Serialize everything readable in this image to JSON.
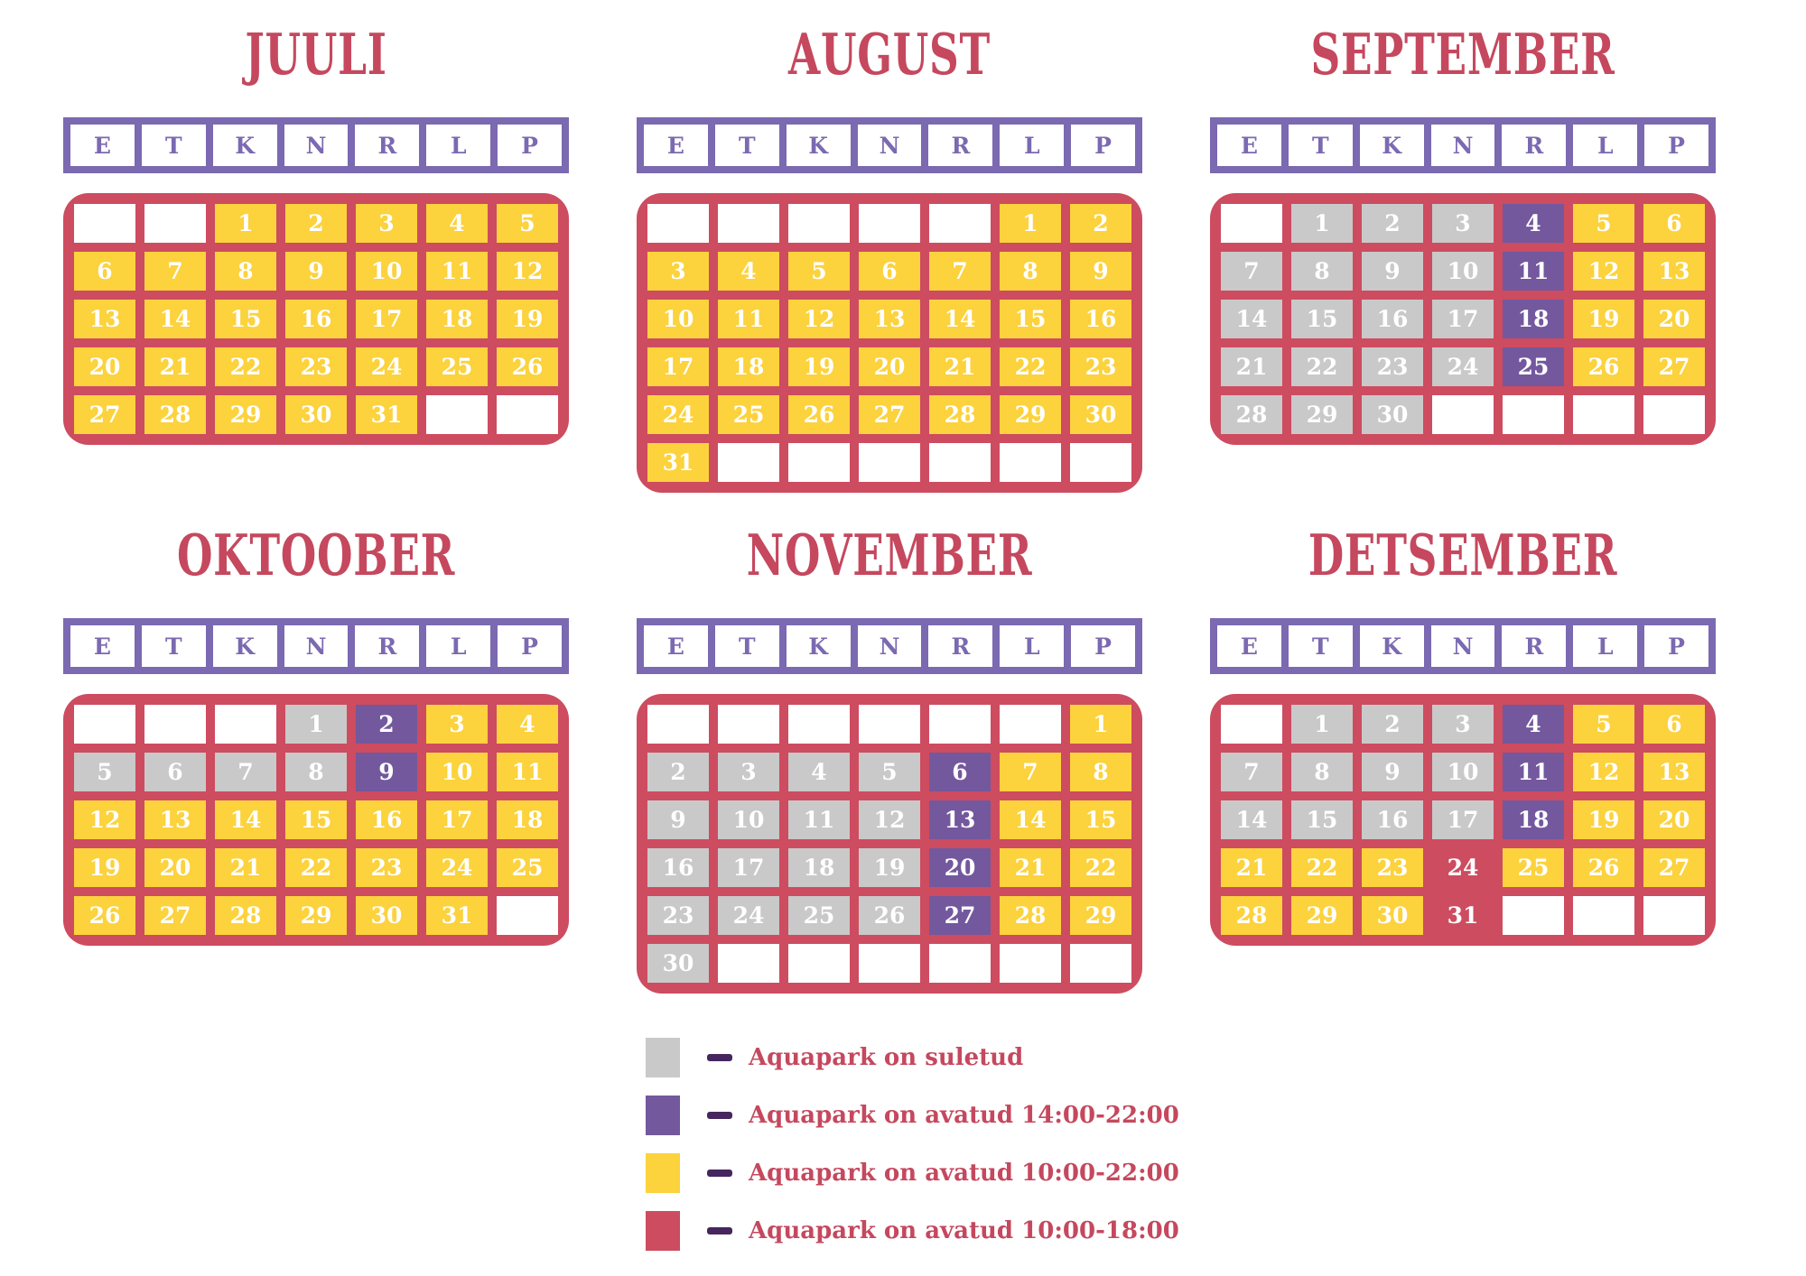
{
  "weekdays": [
    "E",
    "T",
    "K",
    "N",
    "R",
    "L",
    "P"
  ],
  "state_key": {
    "G": "closed",
    "P": "open_14_00_22_00",
    "Y": "open_10_00_22_00",
    "R": "open_10_00_18_00",
    "": "blank"
  },
  "colors": {
    "background": "#ffffff",
    "red": "#cd4c60",
    "yellow": "#fcd23d",
    "gray": "#c9c9c9",
    "purple": "#73589e",
    "weekday_purple": "#7b69b1",
    "dash_purple": "#45265e",
    "title_red": "#c5485e",
    "day_text": "#ffffff"
  },
  "months": [
    {
      "name": "JUULI",
      "cells": [
        {
          "day": "",
          "state": ""
        },
        {
          "day": "",
          "state": ""
        },
        {
          "day": "1",
          "state": "Y"
        },
        {
          "day": "2",
          "state": "Y"
        },
        {
          "day": "3",
          "state": "Y"
        },
        {
          "day": "4",
          "state": "Y"
        },
        {
          "day": "5",
          "state": "Y"
        },
        {
          "day": "6",
          "state": "Y"
        },
        {
          "day": "7",
          "state": "Y"
        },
        {
          "day": "8",
          "state": "Y"
        },
        {
          "day": "9",
          "state": "Y"
        },
        {
          "day": "10",
          "state": "Y"
        },
        {
          "day": "11",
          "state": "Y"
        },
        {
          "day": "12",
          "state": "Y"
        },
        {
          "day": "13",
          "state": "Y"
        },
        {
          "day": "14",
          "state": "Y"
        },
        {
          "day": "15",
          "state": "Y"
        },
        {
          "day": "16",
          "state": "Y"
        },
        {
          "day": "17",
          "state": "Y"
        },
        {
          "day": "18",
          "state": "Y"
        },
        {
          "day": "19",
          "state": "Y"
        },
        {
          "day": "20",
          "state": "Y"
        },
        {
          "day": "21",
          "state": "Y"
        },
        {
          "day": "22",
          "state": "Y"
        },
        {
          "day": "23",
          "state": "Y"
        },
        {
          "day": "24",
          "state": "Y"
        },
        {
          "day": "25",
          "state": "Y"
        },
        {
          "day": "26",
          "state": "Y"
        },
        {
          "day": "27",
          "state": "Y"
        },
        {
          "day": "28",
          "state": "Y"
        },
        {
          "day": "29",
          "state": "Y"
        },
        {
          "day": "30",
          "state": "Y"
        },
        {
          "day": "31",
          "state": "Y"
        },
        {
          "day": "",
          "state": ""
        },
        {
          "day": "",
          "state": ""
        }
      ]
    },
    {
      "name": "AUGUST",
      "cells": [
        {
          "day": "",
          "state": ""
        },
        {
          "day": "",
          "state": ""
        },
        {
          "day": "",
          "state": ""
        },
        {
          "day": "",
          "state": ""
        },
        {
          "day": "",
          "state": ""
        },
        {
          "day": "1",
          "state": "Y"
        },
        {
          "day": "2",
          "state": "Y"
        },
        {
          "day": "3",
          "state": "Y"
        },
        {
          "day": "4",
          "state": "Y"
        },
        {
          "day": "5",
          "state": "Y"
        },
        {
          "day": "6",
          "state": "Y"
        },
        {
          "day": "7",
          "state": "Y"
        },
        {
          "day": "8",
          "state": "Y"
        },
        {
          "day": "9",
          "state": "Y"
        },
        {
          "day": "10",
          "state": "Y"
        },
        {
          "day": "11",
          "state": "Y"
        },
        {
          "day": "12",
          "state": "Y"
        },
        {
          "day": "13",
          "state": "Y"
        },
        {
          "day": "14",
          "state": "Y"
        },
        {
          "day": "15",
          "state": "Y"
        },
        {
          "day": "16",
          "state": "Y"
        },
        {
          "day": "17",
          "state": "Y"
        },
        {
          "day": "18",
          "state": "Y"
        },
        {
          "day": "19",
          "state": "Y"
        },
        {
          "day": "20",
          "state": "Y"
        },
        {
          "day": "21",
          "state": "Y"
        },
        {
          "day": "22",
          "state": "Y"
        },
        {
          "day": "23",
          "state": "Y"
        },
        {
          "day": "24",
          "state": "Y"
        },
        {
          "day": "25",
          "state": "Y"
        },
        {
          "day": "26",
          "state": "Y"
        },
        {
          "day": "27",
          "state": "Y"
        },
        {
          "day": "28",
          "state": "Y"
        },
        {
          "day": "29",
          "state": "Y"
        },
        {
          "day": "30",
          "state": "Y"
        },
        {
          "day": "31",
          "state": "Y"
        },
        {
          "day": "",
          "state": ""
        },
        {
          "day": "",
          "state": ""
        },
        {
          "day": "",
          "state": ""
        },
        {
          "day": "",
          "state": ""
        },
        {
          "day": "",
          "state": ""
        },
        {
          "day": "",
          "state": ""
        }
      ]
    },
    {
      "name": "SEPTEMBER",
      "cells": [
        {
          "day": "",
          "state": ""
        },
        {
          "day": "1",
          "state": "G"
        },
        {
          "day": "2",
          "state": "G"
        },
        {
          "day": "3",
          "state": "G"
        },
        {
          "day": "4",
          "state": "P"
        },
        {
          "day": "5",
          "state": "Y"
        },
        {
          "day": "6",
          "state": "Y"
        },
        {
          "day": "7",
          "state": "G"
        },
        {
          "day": "8",
          "state": "G"
        },
        {
          "day": "9",
          "state": "G"
        },
        {
          "day": "10",
          "state": "G"
        },
        {
          "day": "11",
          "state": "P"
        },
        {
          "day": "12",
          "state": "Y"
        },
        {
          "day": "13",
          "state": "Y"
        },
        {
          "day": "14",
          "state": "G"
        },
        {
          "day": "15",
          "state": "G"
        },
        {
          "day": "16",
          "state": "G"
        },
        {
          "day": "17",
          "state": "G"
        },
        {
          "day": "18",
          "state": "P"
        },
        {
          "day": "19",
          "state": "Y"
        },
        {
          "day": "20",
          "state": "Y"
        },
        {
          "day": "21",
          "state": "G"
        },
        {
          "day": "22",
          "state": "G"
        },
        {
          "day": "23",
          "state": "G"
        },
        {
          "day": "24",
          "state": "G"
        },
        {
          "day": "25",
          "state": "P"
        },
        {
          "day": "26",
          "state": "Y"
        },
        {
          "day": "27",
          "state": "Y"
        },
        {
          "day": "28",
          "state": "G"
        },
        {
          "day": "29",
          "state": "G"
        },
        {
          "day": "30",
          "state": "G"
        },
        {
          "day": "",
          "state": ""
        },
        {
          "day": "",
          "state": ""
        },
        {
          "day": "",
          "state": ""
        },
        {
          "day": "",
          "state": ""
        }
      ]
    },
    {
      "name": "OKTOOBER",
      "cells": [
        {
          "day": "",
          "state": ""
        },
        {
          "day": "",
          "state": ""
        },
        {
          "day": "",
          "state": ""
        },
        {
          "day": "1",
          "state": "G"
        },
        {
          "day": "2",
          "state": "P"
        },
        {
          "day": "3",
          "state": "Y"
        },
        {
          "day": "4",
          "state": "Y"
        },
        {
          "day": "5",
          "state": "G"
        },
        {
          "day": "6",
          "state": "G"
        },
        {
          "day": "7",
          "state": "G"
        },
        {
          "day": "8",
          "state": "G"
        },
        {
          "day": "9",
          "state": "P"
        },
        {
          "day": "10",
          "state": "Y"
        },
        {
          "day": "11",
          "state": "Y"
        },
        {
          "day": "12",
          "state": "Y"
        },
        {
          "day": "13",
          "state": "Y"
        },
        {
          "day": "14",
          "state": "Y"
        },
        {
          "day": "15",
          "state": "Y"
        },
        {
          "day": "16",
          "state": "Y"
        },
        {
          "day": "17",
          "state": "Y"
        },
        {
          "day": "18",
          "state": "Y"
        },
        {
          "day": "19",
          "state": "Y"
        },
        {
          "day": "20",
          "state": "Y"
        },
        {
          "day": "21",
          "state": "Y"
        },
        {
          "day": "22",
          "state": "Y"
        },
        {
          "day": "23",
          "state": "Y"
        },
        {
          "day": "24",
          "state": "Y"
        },
        {
          "day": "25",
          "state": "Y"
        },
        {
          "day": "26",
          "state": "Y"
        },
        {
          "day": "27",
          "state": "Y"
        },
        {
          "day": "28",
          "state": "Y"
        },
        {
          "day": "29",
          "state": "Y"
        },
        {
          "day": "30",
          "state": "Y"
        },
        {
          "day": "31",
          "state": "Y"
        },
        {
          "day": "",
          "state": ""
        }
      ]
    },
    {
      "name": "NOVEMBER",
      "cells": [
        {
          "day": "",
          "state": ""
        },
        {
          "day": "",
          "state": ""
        },
        {
          "day": "",
          "state": ""
        },
        {
          "day": "",
          "state": ""
        },
        {
          "day": "",
          "state": ""
        },
        {
          "day": "",
          "state": ""
        },
        {
          "day": "1",
          "state": "Y"
        },
        {
          "day": "2",
          "state": "G"
        },
        {
          "day": "3",
          "state": "G"
        },
        {
          "day": "4",
          "state": "G"
        },
        {
          "day": "5",
          "state": "G"
        },
        {
          "day": "6",
          "state": "P"
        },
        {
          "day": "7",
          "state": "Y"
        },
        {
          "day": "8",
          "state": "Y"
        },
        {
          "day": "9",
          "state": "G"
        },
        {
          "day": "10",
          "state": "G"
        },
        {
          "day": "11",
          "state": "G"
        },
        {
          "day": "12",
          "state": "G"
        },
        {
          "day": "13",
          "state": "P"
        },
        {
          "day": "14",
          "state": "Y"
        },
        {
          "day": "15",
          "state": "Y"
        },
        {
          "day": "16",
          "state": "G"
        },
        {
          "day": "17",
          "state": "G"
        },
        {
          "day": "18",
          "state": "G"
        },
        {
          "day": "19",
          "state": "G"
        },
        {
          "day": "20",
          "state": "P"
        },
        {
          "day": "21",
          "state": "Y"
        },
        {
          "day": "22",
          "state": "Y"
        },
        {
          "day": "23",
          "state": "G"
        },
        {
          "day": "24",
          "state": "G"
        },
        {
          "day": "25",
          "state": "G"
        },
        {
          "day": "26",
          "state": "G"
        },
        {
          "day": "27",
          "state": "P"
        },
        {
          "day": "28",
          "state": "Y"
        },
        {
          "day": "29",
          "state": "Y"
        },
        {
          "day": "30",
          "state": "G"
        },
        {
          "day": "",
          "state": ""
        },
        {
          "day": "",
          "state": ""
        },
        {
          "day": "",
          "state": ""
        },
        {
          "day": "",
          "state": ""
        },
        {
          "day": "",
          "state": ""
        },
        {
          "day": "",
          "state": ""
        }
      ]
    },
    {
      "name": "DETSEMBER",
      "cells": [
        {
          "day": "",
          "state": ""
        },
        {
          "day": "1",
          "state": "G"
        },
        {
          "day": "2",
          "state": "G"
        },
        {
          "day": "3",
          "state": "G"
        },
        {
          "day": "4",
          "state": "P"
        },
        {
          "day": "5",
          "state": "Y"
        },
        {
          "day": "6",
          "state": "Y"
        },
        {
          "day": "7",
          "state": "G"
        },
        {
          "day": "8",
          "state": "G"
        },
        {
          "day": "9",
          "state": "G"
        },
        {
          "day": "10",
          "state": "G"
        },
        {
          "day": "11",
          "state": "P"
        },
        {
          "day": "12",
          "state": "Y"
        },
        {
          "day": "13",
          "state": "Y"
        },
        {
          "day": "14",
          "state": "G"
        },
        {
          "day": "15",
          "state": "G"
        },
        {
          "day": "16",
          "state": "G"
        },
        {
          "day": "17",
          "state": "G"
        },
        {
          "day": "18",
          "state": "P"
        },
        {
          "day": "19",
          "state": "Y"
        },
        {
          "day": "20",
          "state": "Y"
        },
        {
          "day": "21",
          "state": "Y"
        },
        {
          "day": "22",
          "state": "Y"
        },
        {
          "day": "23",
          "state": "Y"
        },
        {
          "day": "24",
          "state": "R"
        },
        {
          "day": "25",
          "state": "Y"
        },
        {
          "day": "26",
          "state": "Y"
        },
        {
          "day": "27",
          "state": "Y"
        },
        {
          "day": "28",
          "state": "Y"
        },
        {
          "day": "29",
          "state": "Y"
        },
        {
          "day": "30",
          "state": "Y"
        },
        {
          "day": "31",
          "state": "R"
        },
        {
          "day": "",
          "state": ""
        },
        {
          "day": "",
          "state": ""
        },
        {
          "day": "",
          "state": ""
        }
      ]
    }
  ],
  "legend": {
    "items": [
      {
        "swatch": "G",
        "label": "Aquapark on suletud"
      },
      {
        "swatch": "P",
        "label": "Aquapark on avatud 14:00-22:00"
      },
      {
        "swatch": "Y",
        "label": "Aquapark on avatud 10:00-22:00"
      },
      {
        "swatch": "R",
        "label": "Aquapark on avatud 10:00-18:00"
      }
    ]
  }
}
